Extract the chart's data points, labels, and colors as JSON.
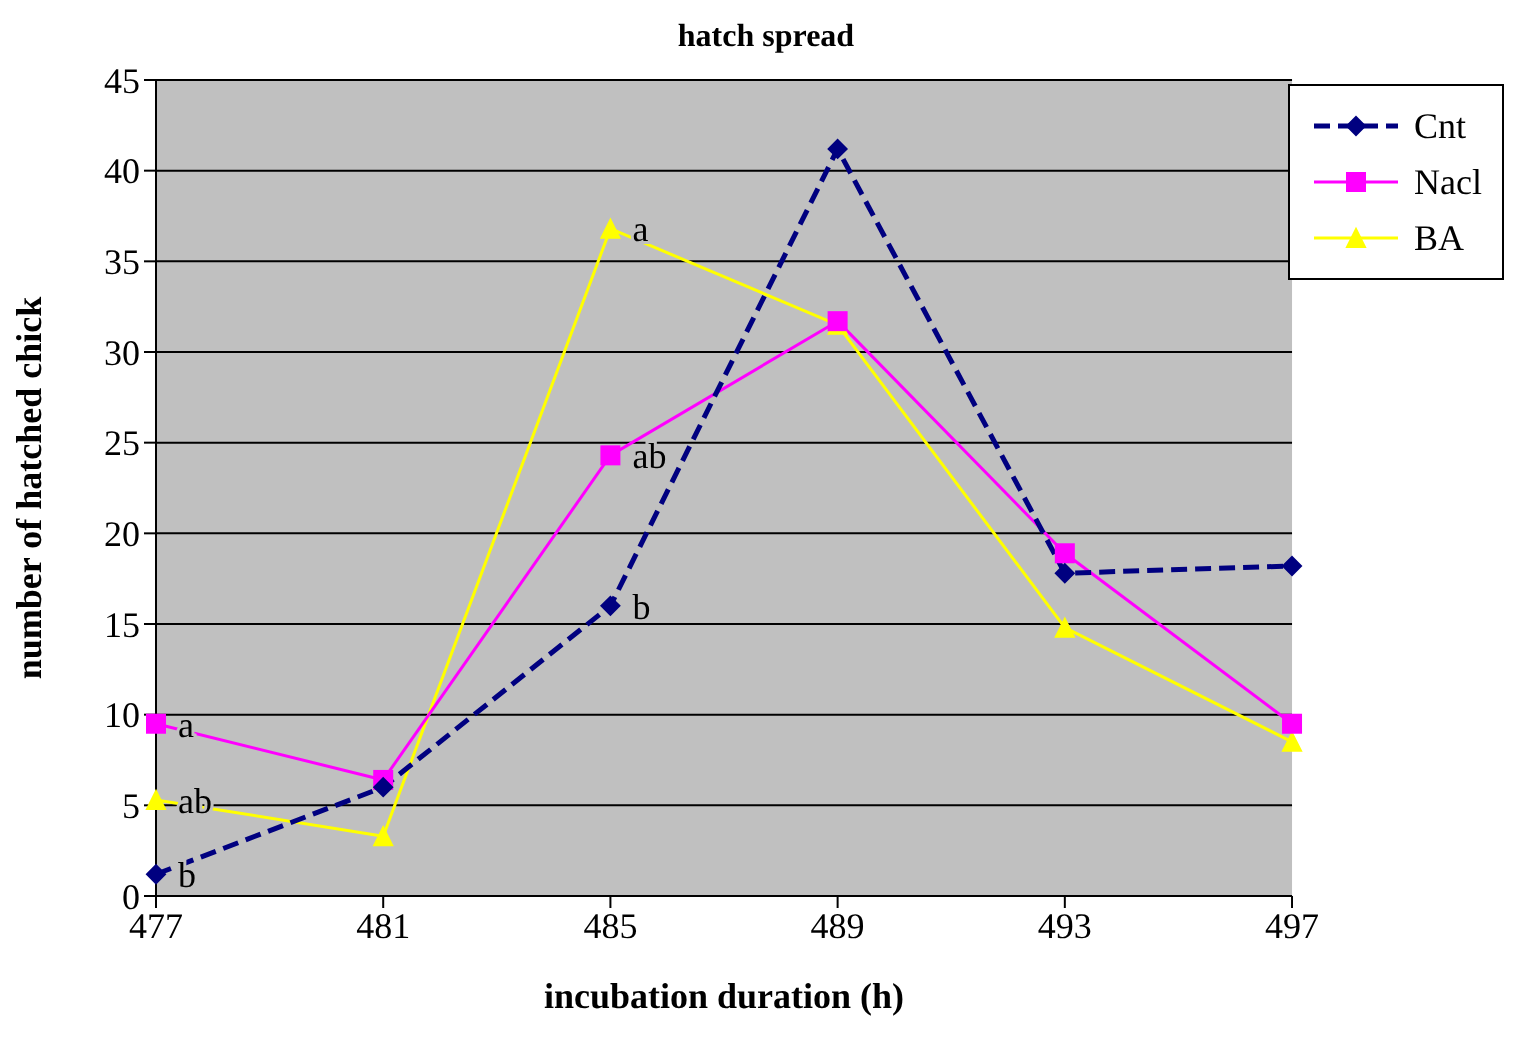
{
  "chart_data": {
    "type": "line",
    "title": "hatch spread",
    "xlabel": "incubation duration (h)",
    "ylabel": "number of hatched chick",
    "categories": [
      "477",
      "481",
      "485",
      "489",
      "493",
      "497"
    ],
    "series": [
      {
        "name": "Cnt",
        "color": "#000080",
        "values": [
          1.2,
          6,
          16,
          41.2,
          17.8,
          18.2
        ],
        "marker": "diamond",
        "line_style": "dashed"
      },
      {
        "name": "Nacl",
        "color": "#ff00ff",
        "values": [
          9.5,
          6.4,
          24.3,
          31.7,
          18.9,
          9.5
        ],
        "marker": "square",
        "line_style": "solid"
      },
      {
        "name": "BA",
        "color": "#ffff00",
        "values": [
          5.3,
          3.3,
          36.8,
          31.5,
          14.8,
          8.5
        ],
        "marker": "triangle",
        "line_style": "solid"
      }
    ],
    "ylim": [
      0,
      45
    ],
    "yticks": [
      0,
      5,
      10,
      15,
      20,
      25,
      30,
      35,
      40,
      45
    ],
    "grid": "y",
    "legend": "top right",
    "annotations": [
      {
        "text": "a",
        "x": "477",
        "y": 9.5
      },
      {
        "text": "ab",
        "x": "477",
        "y": 5.3
      },
      {
        "text": "b",
        "x": "477",
        "y": 1.2
      },
      {
        "text": "a",
        "x": "485",
        "y": 36.8
      },
      {
        "text": "ab",
        "x": "485",
        "y": 24.3
      },
      {
        "text": "b",
        "x": "485",
        "y": 16
      }
    ]
  }
}
